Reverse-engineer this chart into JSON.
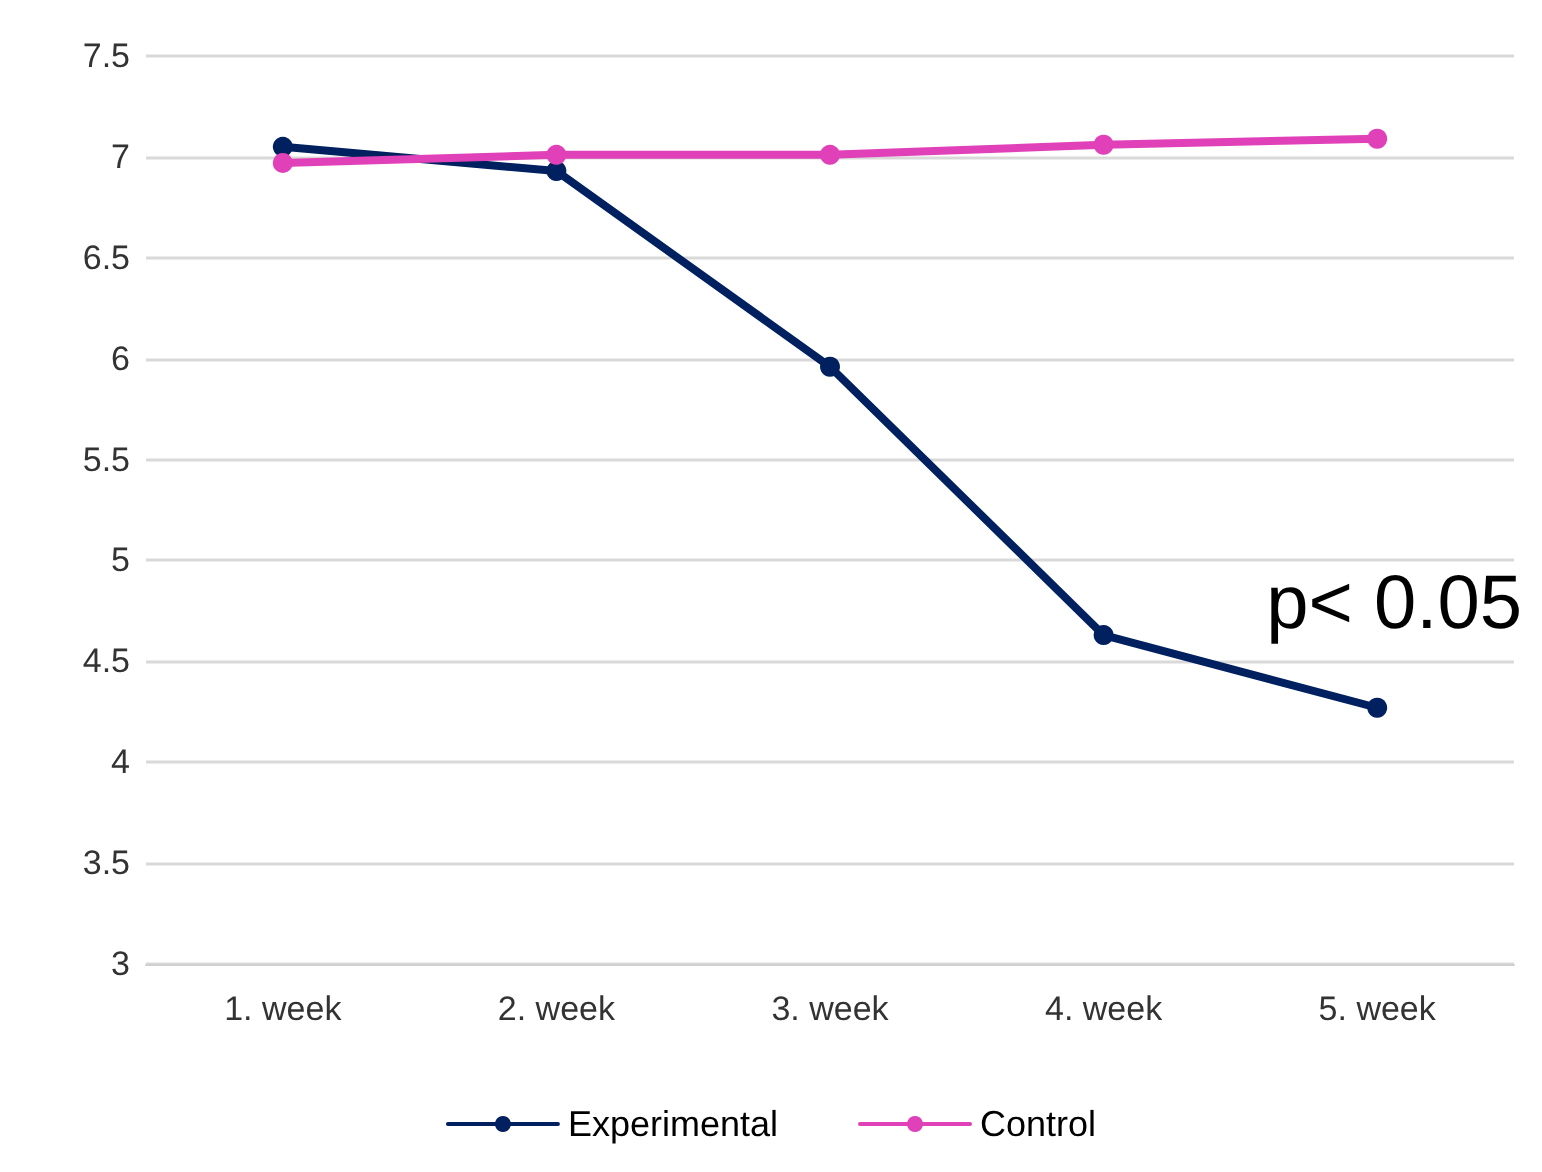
{
  "chart_data": {
    "type": "line",
    "categories": [
      "1. week",
      "2. week",
      "3. week",
      "4. week",
      "5. week"
    ],
    "series": [
      {
        "name": "Experimental",
        "color": "#002060",
        "values": [
          7.05,
          6.93,
          5.96,
          4.63,
          4.27
        ]
      },
      {
        "name": "Control",
        "color": "#e040b8",
        "values": [
          6.97,
          7.01,
          7.01,
          7.06,
          7.09
        ]
      }
    ],
    "ylim": [
      3,
      7.5
    ],
    "yticks": [
      3,
      3.5,
      4,
      4.5,
      5,
      5.5,
      6,
      6.5,
      7,
      7.5
    ],
    "grid": "y",
    "legend": "bottom",
    "marker": "circle",
    "line_style": "solid",
    "annotations": [
      "p< 0.05"
    ]
  }
}
